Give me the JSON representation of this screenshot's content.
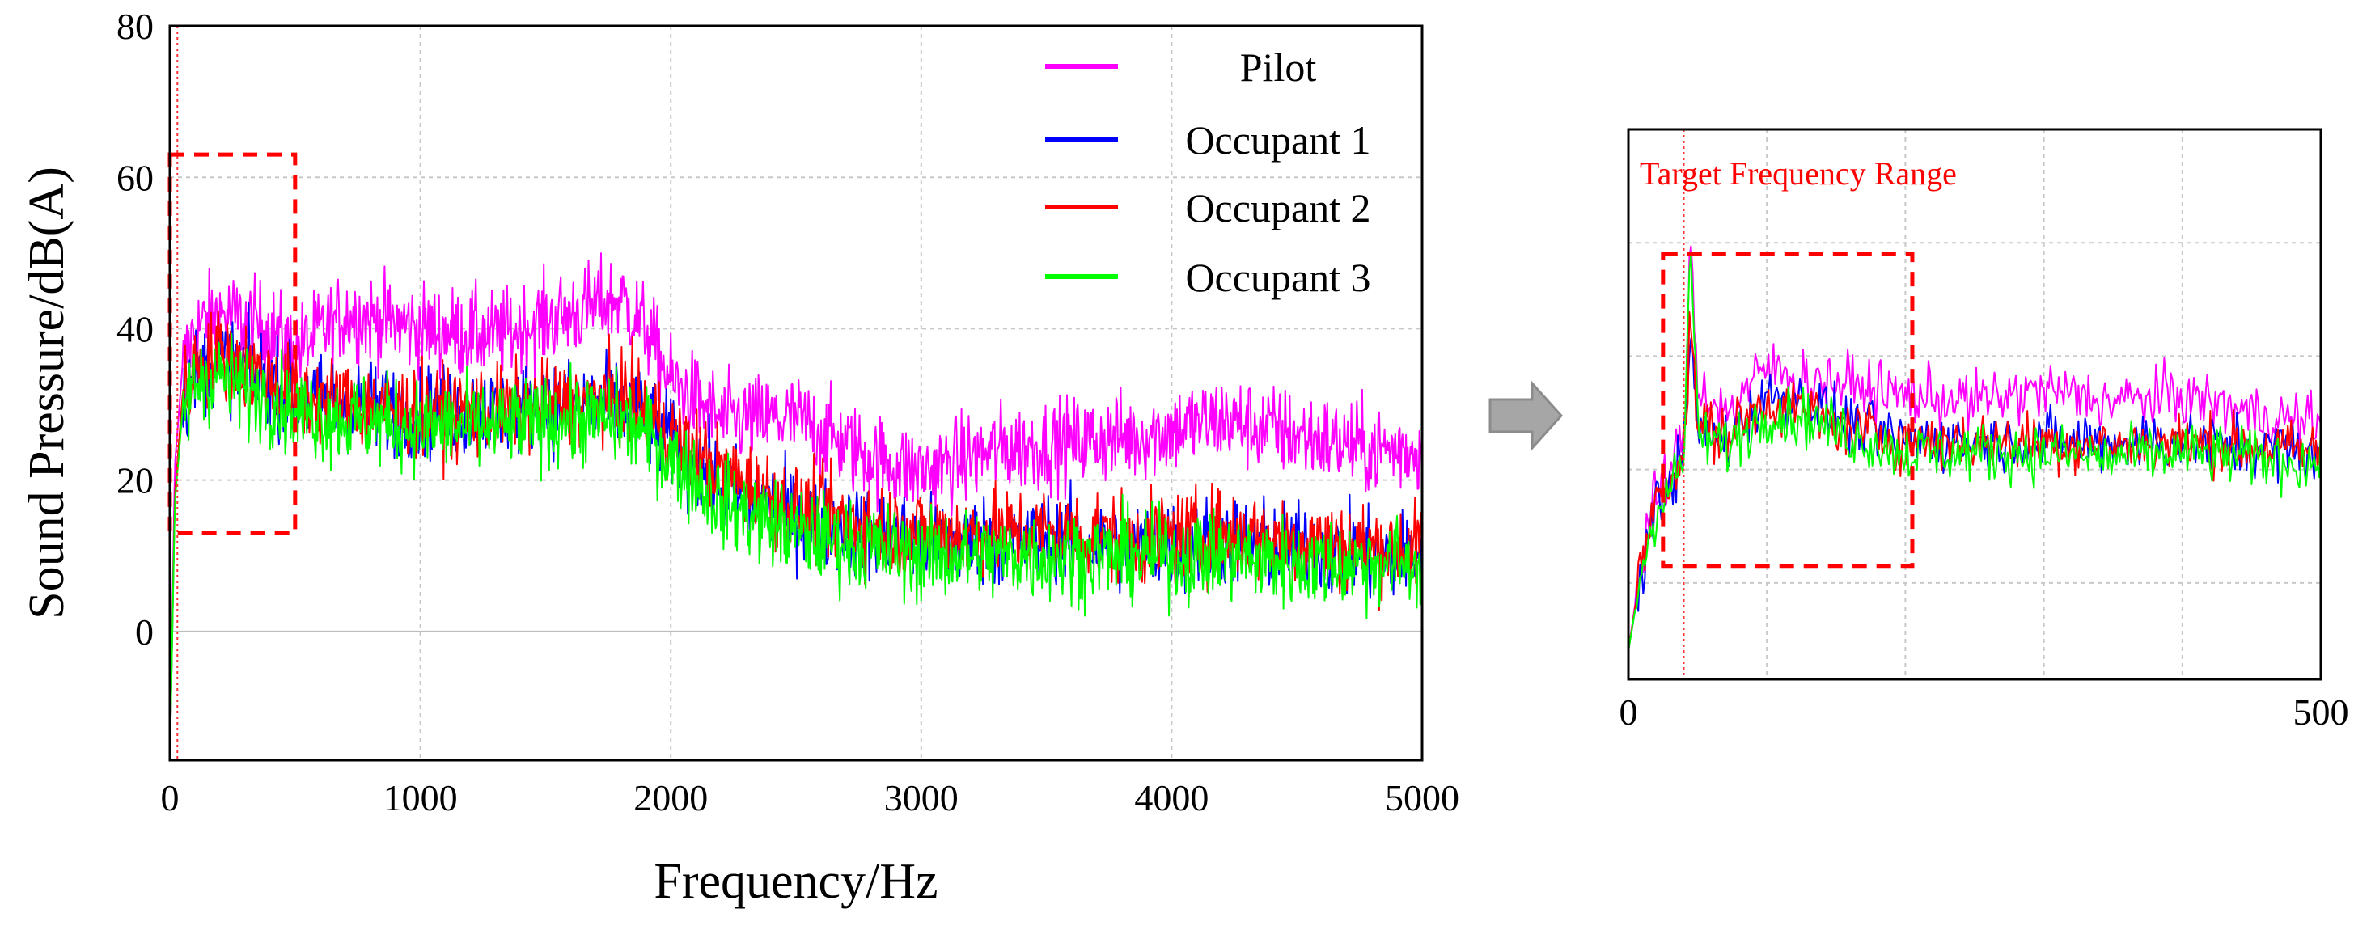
{
  "chart_data": [
    {
      "type": "line",
      "panel": "main",
      "title": "",
      "xlabel": "Frequency/Hz",
      "ylabel": "Sound Pressure/dB(A)",
      "xlim": [
        0,
        5000
      ],
      "ylim": [
        -17,
        80
      ],
      "xticks": [
        "0",
        "1000",
        "2000",
        "3000",
        "4000",
        "5000"
      ],
      "yticks": [
        "0",
        "20",
        "40",
        "60",
        "80"
      ],
      "grid": true,
      "legend_position": "top-right",
      "marker_line_hz": 30,
      "highlight_box": {
        "x": [
          0,
          500
        ],
        "y": [
          13,
          63
        ]
      },
      "series": [
        {
          "name": "Pilot",
          "color": "#ff00ff",
          "x": [
            0,
            20,
            50,
            100,
            200,
            300,
            400,
            500,
            700,
            1000,
            1300,
            1600,
            1800,
            1900,
            2000,
            2200,
            2500,
            2800,
            3000,
            3300,
            3600,
            3900,
            4200,
            4500,
            4800,
            5000
          ],
          "values": [
            -17,
            22,
            35,
            40,
            42,
            41,
            40,
            37,
            42,
            40,
            39,
            42,
            44,
            40,
            33,
            28,
            28,
            23,
            21,
            24,
            25,
            26,
            28,
            26,
            24,
            24
          ]
        },
        {
          "name": "Occupant 1",
          "color": "#0000ff",
          "x": [
            0,
            20,
            50,
            100,
            200,
            300,
            400,
            500,
            700,
            1000,
            1300,
            1600,
            1800,
            1900,
            2000,
            2200,
            2500,
            2800,
            3000,
            3300,
            3600,
            3900,
            4200,
            4500,
            4800,
            5000
          ],
          "values": [
            -17,
            18,
            30,
            34,
            36,
            35,
            33,
            31,
            30,
            29,
            29,
            30,
            30,
            28,
            25,
            19,
            15,
            13,
            12,
            12,
            12,
            11,
            12,
            11,
            10,
            10
          ]
        },
        {
          "name": "Occupant 2",
          "color": "#ff0000",
          "x": [
            0,
            20,
            50,
            100,
            200,
            300,
            400,
            500,
            700,
            1000,
            1300,
            1600,
            1800,
            1900,
            2000,
            2200,
            2500,
            2800,
            3000,
            3300,
            3600,
            3900,
            4200,
            4500,
            4800,
            5000
          ],
          "values": [
            -17,
            18,
            31,
            35,
            37,
            35,
            33,
            31,
            30,
            29,
            29,
            30,
            31,
            29,
            26,
            21,
            16,
            14,
            13,
            13,
            13,
            12,
            13,
            12,
            11,
            11
          ]
        },
        {
          "name": "Occupant 3",
          "color": "#00ff00",
          "x": [
            0,
            20,
            50,
            100,
            200,
            300,
            400,
            500,
            700,
            1000,
            1300,
            1600,
            1800,
            1900,
            2000,
            2200,
            2500,
            2800,
            3000,
            3300,
            3600,
            3900,
            4200,
            4500,
            4800,
            5000
          ],
          "values": [
            -17,
            17,
            29,
            33,
            34,
            32,
            31,
            29,
            28,
            27,
            27,
            28,
            28,
            26,
            23,
            17,
            13,
            11,
            10,
            10,
            10,
            10,
            10,
            9,
            9,
            9
          ]
        }
      ]
    },
    {
      "type": "line",
      "panel": "zoom",
      "title": "",
      "xlabel": "",
      "ylabel": "",
      "xlim": [
        0,
        500
      ],
      "ylim": [
        -17,
        80
      ],
      "xticks": [
        "0",
        "500"
      ],
      "annotation": "Target Frequency Range",
      "annotation_color": "#ff0000",
      "marker_line_hz": 40,
      "highlight_box": {
        "x": [
          25,
          205
        ],
        "y": [
          3,
          58
        ]
      },
      "series": [
        {
          "name": "Pilot",
          "color": "#ff00ff",
          "x": [
            0,
            10,
            20,
            30,
            40,
            45,
            50,
            70,
            100,
            130,
            160,
            200,
            250,
            300,
            350,
            400,
            450,
            500
          ],
          "values": [
            -12,
            5,
            15,
            20,
            25,
            60,
            35,
            30,
            38,
            36,
            35,
            33,
            32,
            34,
            32,
            33,
            30,
            28
          ]
        },
        {
          "name": "Occupant 1",
          "color": "#0000ff",
          "x": [
            0,
            10,
            20,
            30,
            40,
            45,
            50,
            70,
            100,
            130,
            160,
            200,
            250,
            300,
            350,
            400,
            450,
            500
          ],
          "values": [
            -12,
            3,
            14,
            18,
            22,
            45,
            27,
            25,
            33,
            32,
            28,
            25,
            25,
            25,
            25,
            25,
            24,
            23
          ]
        },
        {
          "name": "Occupant 2",
          "color": "#ff0000",
          "x": [
            0,
            10,
            20,
            30,
            40,
            45,
            50,
            70,
            100,
            130,
            160,
            200,
            250,
            300,
            350,
            400,
            450,
            500
          ],
          "values": [
            -12,
            4,
            15,
            19,
            23,
            46,
            28,
            26,
            32,
            30,
            27,
            25,
            25,
            25,
            24,
            25,
            24,
            23
          ]
        },
        {
          "name": "Occupant 3",
          "color": "#00ff00",
          "x": [
            0,
            10,
            20,
            30,
            40,
            45,
            50,
            70,
            100,
            130,
            160,
            200,
            250,
            300,
            350,
            400,
            450,
            500
          ],
          "values": [
            -12,
            3,
            13,
            17,
            21,
            62,
            26,
            24,
            30,
            29,
            26,
            23,
            23,
            23,
            22,
            23,
            22,
            21
          ]
        }
      ]
    }
  ]
}
